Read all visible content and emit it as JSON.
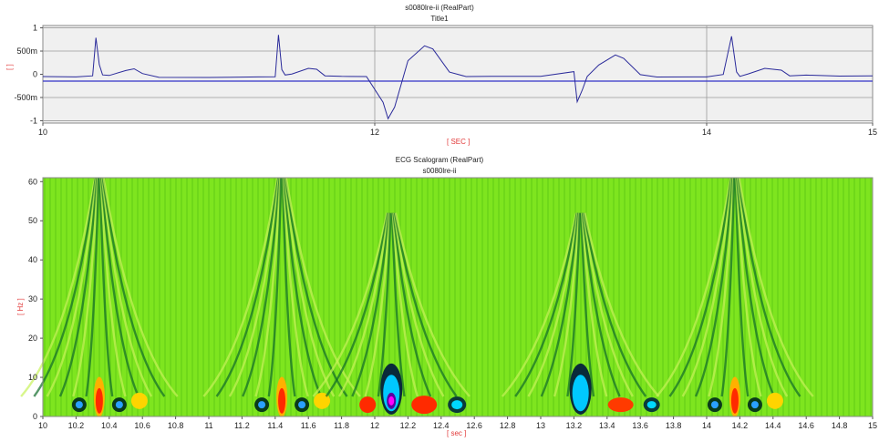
{
  "chart_data": [
    {
      "type": "line",
      "title": "s0080lre-ii (RealPart)",
      "subtitle": "Title1",
      "xlabel": "[ SEC ]",
      "ylabel": "[ ]",
      "xlim": [
        10,
        15
      ],
      "ylim": [
        -1.05,
        1.05
      ],
      "x_ticks": [
        10,
        12,
        14,
        15
      ],
      "x_tick_labels": [
        "10",
        "12",
        "14",
        "15"
      ],
      "y_ticks": [
        1,
        0.5,
        0,
        -0.5,
        -1
      ],
      "y_tick_labels": [
        "1",
        "500m",
        "0",
        "-500m",
        "-1"
      ],
      "grid": true,
      "colors": {
        "plot_bg": "#f0f0f0",
        "line": "#2a2a9a",
        "baseline": "#3232c8",
        "axis_label": "#e23b3b"
      },
      "series": [
        {
          "x": [
            10.0,
            10.2,
            10.3,
            10.32,
            10.34,
            10.36,
            10.4,
            10.5,
            10.55,
            10.6,
            10.7,
            11.0,
            11.3,
            11.4,
            11.42,
            11.44,
            11.46,
            11.5,
            11.6,
            11.65,
            11.7,
            11.8,
            11.95,
            12.05,
            12.08,
            12.12,
            12.2,
            12.3,
            12.35,
            12.45,
            12.55,
            12.7,
            13.0,
            13.2,
            13.22,
            13.25,
            13.28,
            13.35,
            13.45,
            13.5,
            13.6,
            13.7,
            14.0,
            14.1,
            14.15,
            14.18,
            14.2,
            14.25,
            14.35,
            14.45,
            14.5,
            14.6,
            14.8,
            15.0
          ],
          "y": [
            -0.05,
            -0.06,
            -0.04,
            0.78,
            0.2,
            -0.02,
            -0.03,
            0.08,
            0.12,
            0.02,
            -0.06,
            -0.06,
            -0.05,
            -0.05,
            0.85,
            0.1,
            -0.02,
            0.0,
            0.12,
            0.1,
            -0.04,
            -0.05,
            -0.05,
            -0.6,
            -0.95,
            -0.7,
            0.3,
            0.62,
            0.55,
            0.05,
            -0.05,
            -0.05,
            -0.05,
            0.05,
            -0.6,
            -0.35,
            -0.05,
            0.2,
            0.42,
            0.35,
            0.0,
            -0.05,
            -0.05,
            0.0,
            0.82,
            0.05,
            -0.05,
            0.0,
            0.12,
            0.08,
            -0.04,
            -0.02,
            -0.04,
            -0.03
          ]
        }
      ]
    },
    {
      "type": "heatmap",
      "title": "ECG Scalogram (RealPart)",
      "subtitle": "s0080lre-ii",
      "xlabel": "[ sec ]",
      "ylabel": "[ Hz ]",
      "xlim": [
        10,
        15
      ],
      "ylim": [
        0,
        61
      ],
      "x_tick_labels": [
        "10",
        "10.2",
        "10.4",
        "10.6",
        "10.8",
        "11",
        "11.2",
        "11.4",
        "11.6",
        "11.8",
        "12",
        "12.2",
        "12.4",
        "12.6",
        "12.8",
        "13",
        "13.2",
        "13.4",
        "13.6",
        "13.8",
        "14",
        "14.2",
        "14.4",
        "14.6",
        "14.8",
        "15"
      ],
      "y_tick_labels": [
        "0",
        "10",
        "20",
        "30",
        "40",
        "50",
        "60"
      ],
      "colormap": [
        "#ff00ff",
        "#0000ff",
        "#00ffff",
        "#00ff00",
        "#ffff00",
        "#ff0000"
      ],
      "background_value_color": "#7ee51f",
      "events": [
        {
          "time": 10.34,
          "kind": "R-peak"
        },
        {
          "time": 11.44,
          "kind": "R-peak"
        },
        {
          "time": 12.1,
          "kind": "inverted"
        },
        {
          "time": 13.24,
          "kind": "inverted"
        },
        {
          "time": 14.17,
          "kind": "R-peak"
        }
      ]
    }
  ]
}
